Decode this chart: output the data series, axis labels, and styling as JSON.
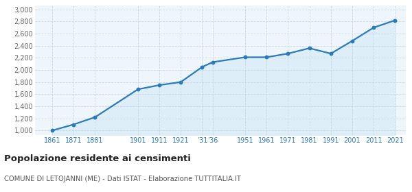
{
  "years": [
    1861,
    1871,
    1881,
    1901,
    1911,
    1921,
    1931,
    1936,
    1951,
    1961,
    1971,
    1981,
    1991,
    2001,
    2011,
    2021
  ],
  "population": [
    1000,
    1100,
    1220,
    1680,
    1750,
    1800,
    2050,
    2130,
    2210,
    2210,
    2270,
    2360,
    2270,
    2480,
    2700,
    2820
  ],
  "line_color": "#2b7bba",
  "fill_color": "#ddeef8",
  "marker_color": "#2b7bba",
  "bg_color": "#eef5fb",
  "grid_color": "#c8d8e8",
  "title": "Popolazione residente ai censimenti",
  "subtitle": "COMUNE DI LETOJANNI (ME) - Dati ISTAT - Elaborazione TUTTITALIA.IT",
  "ylim": [
    920,
    3060
  ],
  "yticks": [
    1000,
    1200,
    1400,
    1600,
    1800,
    2000,
    2200,
    2400,
    2600,
    2800,
    3000
  ],
  "xlim": [
    1853,
    2026
  ],
  "x_tick_positions": [
    1861,
    1871,
    1881,
    1901,
    1911,
    1921,
    1931,
    1936,
    1951,
    1961,
    1971,
    1981,
    1991,
    2001,
    2011,
    2021
  ],
  "x_tick_labels": [
    "1861",
    "1871",
    "1881",
    "1901",
    "1911",
    "1921",
    "’31",
    "’36",
    "1951",
    "1961",
    "1971",
    "1981",
    "1991",
    "2001",
    "2011",
    "2021"
  ]
}
